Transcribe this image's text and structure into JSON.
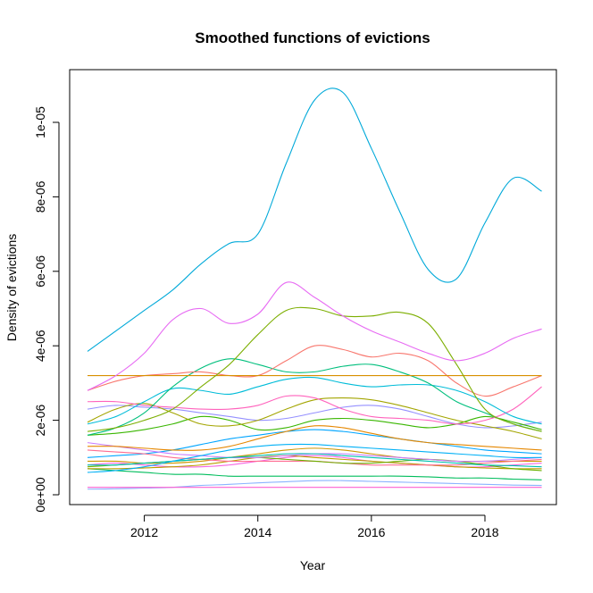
{
  "chart_data": {
    "type": "line",
    "title": "Smoothed functions of evictions",
    "xlabel": "Year",
    "ylabel": "Density of evictions",
    "xlim": [
      2011,
      2019
    ],
    "ylim": [
      0,
      1.12e-05
    ],
    "x_ticks": [
      2012,
      2014,
      2016,
      2018
    ],
    "x_tick_labels": [
      "2012",
      "2014",
      "2016",
      "2018"
    ],
    "y_ticks": [
      0,
      2e-06,
      4e-06,
      6e-06,
      8e-06,
      1e-05
    ],
    "y_tick_labels": [
      "0e+00",
      "2e-06",
      "4e-06",
      "6e-06",
      "8e-06",
      "1e-05"
    ],
    "grid": false,
    "legend": "none",
    "x": [
      2011,
      2011.5,
      2012,
      2012.5,
      2013,
      2013.5,
      2014,
      2014.5,
      2015,
      2015.5,
      2016,
      2016.5,
      2017,
      2017.5,
      2018,
      2018.5,
      2019
    ],
    "series": [
      {
        "color": "#00A9D9",
        "values": [
          3.85e-06,
          4.4e-06,
          4.95e-06,
          5.5e-06,
          6.2e-06,
          6.75e-06,
          7e-06,
          8.9e-06,
          1.06e-05,
          1.08e-05,
          9.3e-06,
          7.6e-06,
          6.05e-06,
          5.8e-06,
          7.3e-06,
          8.5e-06,
          8.15e-06
        ]
      },
      {
        "color": "#E76BF3",
        "values": [
          2.8e-06,
          3.2e-06,
          3.8e-06,
          4.7e-06,
          5e-06,
          4.6e-06,
          4.85e-06,
          5.7e-06,
          5.3e-06,
          4.8e-06,
          4.4e-06,
          4.1e-06,
          3.8e-06,
          3.6e-06,
          3.8e-06,
          4.2e-06,
          4.45e-06
        ]
      },
      {
        "color": "#7CAE00",
        "values": [
          1.7e-06,
          1.8e-06,
          2e-06,
          2.3e-06,
          2.9e-06,
          3.5e-06,
          4.3e-06,
          4.95e-06,
          5e-06,
          4.8e-06,
          4.8e-06,
          4.9e-06,
          4.6e-06,
          3.5e-06,
          2.3e-06,
          1.9e-06,
          1.7e-06
        ]
      },
      {
        "color": "#D89000",
        "values": [
          3.2e-06,
          3.2e-06,
          3.2e-06,
          3.2e-06,
          3.2e-06,
          3.2e-06,
          3.2e-06,
          3.2e-06,
          3.2e-06,
          3.2e-06,
          3.2e-06,
          3.2e-06,
          3.2e-06,
          3.2e-06,
          3.2e-06,
          3.2e-06,
          3.2e-06
        ]
      },
      {
        "color": "#F8766D",
        "values": [
          2.8e-06,
          3.05e-06,
          3.2e-06,
          3.25e-06,
          3.3e-06,
          3.2e-06,
          3.2e-06,
          3.6e-06,
          4e-06,
          3.9e-06,
          3.7e-06,
          3.8e-06,
          3.6e-06,
          3e-06,
          2.65e-06,
          2.9e-06,
          3.2e-06
        ]
      },
      {
        "color": "#00BF7D",
        "values": [
          1.6e-06,
          1.8e-06,
          2.2e-06,
          2.9e-06,
          3.4e-06,
          3.65e-06,
          3.5e-06,
          3.3e-06,
          3.3e-06,
          3.45e-06,
          3.5e-06,
          3.3e-06,
          3e-06,
          2.5e-06,
          2.2e-06,
          1.9e-06,
          1.7e-06
        ]
      },
      {
        "color": "#00BCD8",
        "values": [
          1.9e-06,
          2.1e-06,
          2.5e-06,
          2.85e-06,
          2.8e-06,
          2.7e-06,
          2.9e-06,
          3.1e-06,
          3.15e-06,
          3e-06,
          2.9e-06,
          2.95e-06,
          2.95e-06,
          2.8e-06,
          2.5e-06,
          2.1e-06,
          1.9e-06
        ]
      },
      {
        "color": "#FF62BC",
        "values": [
          2.5e-06,
          2.5e-06,
          2.4e-06,
          2.35e-06,
          2.3e-06,
          2.3e-06,
          2.4e-06,
          2.65e-06,
          2.6e-06,
          2.3e-06,
          2.1e-06,
          2.05e-06,
          2e-06,
          1.9e-06,
          2e-06,
          2.3e-06,
          2.9e-06
        ]
      },
      {
        "color": "#A3A500",
        "values": [
          1.95e-06,
          2.3e-06,
          2.45e-06,
          2.2e-06,
          1.9e-06,
          1.85e-06,
          2e-06,
          2.3e-06,
          2.55e-06,
          2.6e-06,
          2.55e-06,
          2.4e-06,
          2.2e-06,
          2e-06,
          1.85e-06,
          1.7e-06,
          1.5e-06
        ]
      },
      {
        "color": "#39B600",
        "values": [
          1.6e-06,
          1.65e-06,
          1.75e-06,
          1.9e-06,
          2.1e-06,
          2e-06,
          1.75e-06,
          1.8e-06,
          2e-06,
          2.05e-06,
          2e-06,
          1.9e-06,
          1.8e-06,
          1.9e-06,
          2.1e-06,
          1.95e-06,
          1.75e-06
        ]
      },
      {
        "color": "#9590FF",
        "values": [
          2.3e-06,
          2.4e-06,
          2.35e-06,
          2.3e-06,
          2.2e-06,
          2.1e-06,
          2e-06,
          2.05e-06,
          2.2e-06,
          2.35e-06,
          2.4e-06,
          2.3e-06,
          2.1e-06,
          1.9e-06,
          1.8e-06,
          1.85e-06,
          1.95e-06
        ]
      },
      {
        "color": "#E58700",
        "values": [
          1.3e-06,
          1.3e-06,
          1.25e-06,
          1.2e-06,
          1.2e-06,
          1.3e-06,
          1.5e-06,
          1.7e-06,
          1.85e-06,
          1.8e-06,
          1.65e-06,
          1.5e-06,
          1.4e-06,
          1.35e-06,
          1.3e-06,
          1.25e-06,
          1.2e-06
        ]
      },
      {
        "color": "#00B0F6",
        "values": [
          6e-07,
          6.5e-07,
          7.5e-07,
          9e-07,
          1.05e-06,
          1.2e-06,
          1.3e-06,
          1.35e-06,
          1.35e-06,
          1.3e-06,
          1.25e-06,
          1.2e-06,
          1.15e-06,
          1.1e-06,
          1.05e-06,
          1e-06,
          1e-06
        ]
      },
      {
        "color": "#00C0AF",
        "values": [
          8e-07,
          8e-07,
          8.5e-07,
          9e-07,
          9.5e-07,
          1e-06,
          1.05e-06,
          1.1e-06,
          1.1e-06,
          1.05e-06,
          1e-06,
          9.5e-07,
          9e-07,
          8.5e-07,
          8e-07,
          7.8e-07,
          7.5e-07
        ]
      },
      {
        "color": "#C77CFF",
        "values": [
          1.4e-06,
          1.3e-06,
          1.2e-06,
          1.1e-06,
          1.05e-06,
          1e-06,
          1e-06,
          1.05e-06,
          1.1e-06,
          1.1e-06,
          1.05e-06,
          1e-06,
          9.5e-07,
          9e-07,
          9e-07,
          9.5e-07,
          1e-06
        ]
      },
      {
        "color": "#6BB100",
        "values": [
          7.5e-07,
          8e-07,
          8.5e-07,
          9e-07,
          9.5e-07,
          1e-06,
          1e-06,
          9.5e-07,
          9e-07,
          8.5e-07,
          8.5e-07,
          9e-07,
          9.5e-07,
          9e-07,
          8e-07,
          7e-07,
          6.5e-07
        ]
      },
      {
        "color": "#FF6C91",
        "values": [
          1.2e-06,
          1.15e-06,
          1.1e-06,
          1e-06,
          9.5e-07,
          9e-07,
          9e-07,
          9e-07,
          9e-07,
          8.5e-07,
          8e-07,
          8e-07,
          8e-07,
          8e-07,
          8.5e-07,
          9e-07,
          9.5e-07
        ]
      },
      {
        "color": "#BB9D00",
        "values": [
          7e-07,
          7e-07,
          7.2e-07,
          7.5e-07,
          8e-07,
          9e-07,
          1e-06,
          1.05e-06,
          1e-06,
          9.5e-07,
          9e-07,
          8.5e-07,
          8e-07,
          7.5e-07,
          7.2e-07,
          7e-07,
          7e-07
        ]
      },
      {
        "color": "#00BD5C",
        "values": [
          7e-07,
          6.5e-07,
          6e-07,
          5.5e-07,
          5.5e-07,
          5e-07,
          5e-07,
          5e-07,
          5e-07,
          5e-07,
          5e-07,
          5e-07,
          4.8e-07,
          4.5e-07,
          4.5e-07,
          4.2e-07,
          4e-07
        ]
      },
      {
        "color": "#FD61D1",
        "values": [
          2e-07,
          2e-07,
          2e-07,
          2e-07,
          2e-07,
          2e-07,
          2e-07,
          2e-07,
          2e-07,
          2e-07,
          2e-07,
          2e-07,
          2e-07,
          2e-07,
          2e-07,
          2e-07,
          2e-07
        ]
      },
      {
        "color": "#8AB3FF",
        "values": [
          1.5e-07,
          1.6e-07,
          1.8e-07,
          2e-07,
          2.5e-07,
          2.8e-07,
          3.2e-07,
          3.5e-07,
          3.8e-07,
          3.8e-07,
          3.6e-07,
          3.4e-07,
          3.2e-07,
          3e-07,
          2.8e-07,
          2.6e-07,
          2.5e-07
        ]
      },
      {
        "color": "#F564E3",
        "values": [
          8e-07,
          8.5e-07,
          8e-07,
          7.5e-07,
          7.5e-07,
          8e-07,
          9e-07,
          1e-06,
          1.05e-06,
          1e-06,
          9e-07,
          8.5e-07,
          8e-07,
          7.5e-07,
          7.5e-07,
          8e-07,
          8.5e-07
        ]
      },
      {
        "color": "#00A5FF",
        "values": [
          1e-06,
          1.05e-06,
          1.1e-06,
          1.2e-06,
          1.35e-06,
          1.5e-06,
          1.6e-06,
          1.7e-06,
          1.75e-06,
          1.7e-06,
          1.6e-06,
          1.5e-06,
          1.4e-06,
          1.3e-06,
          1.2e-06,
          1.15e-06,
          1.1e-06
        ]
      },
      {
        "color": "#CD9600",
        "values": [
          9e-07,
          9e-07,
          8.5e-07,
          8.5e-07,
          9e-07,
          1e-06,
          1.1e-06,
          1.2e-06,
          1.25e-06,
          1.2e-06,
          1.1e-06,
          1e-06,
          9.5e-07,
          9e-07,
          9e-07,
          9e-07,
          9e-07
        ]
      }
    ]
  }
}
